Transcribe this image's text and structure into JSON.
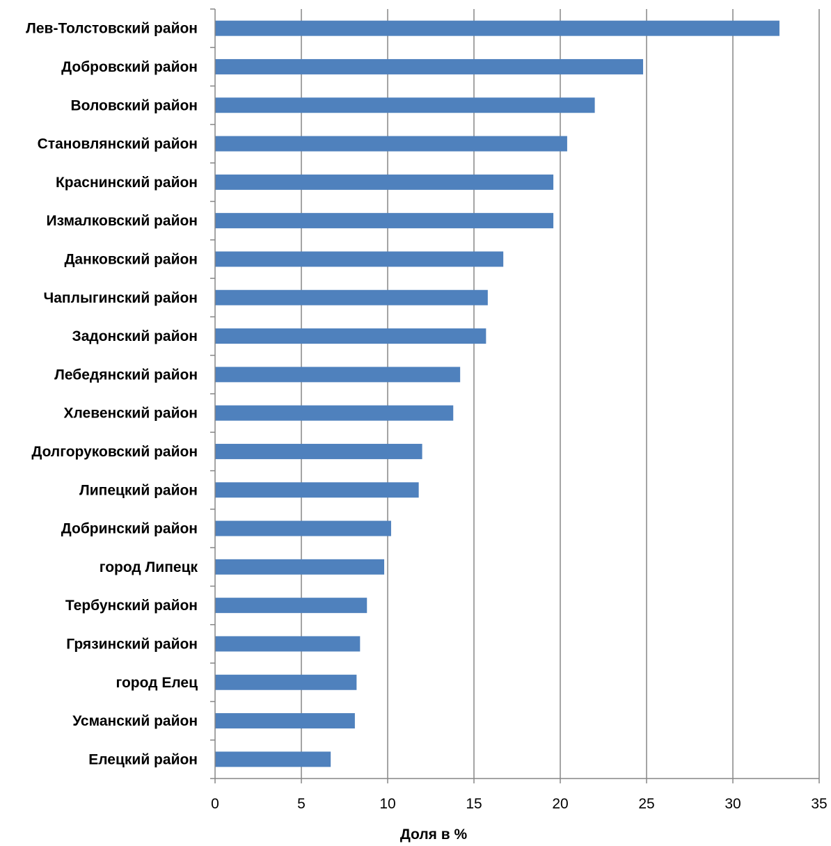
{
  "chart_data": {
    "type": "bar",
    "orientation": "horizontal",
    "categories": [
      "Лев-Толстовский район",
      "Добровский район",
      "Воловский район",
      "Становлянский район",
      "Краснинский район",
      "Измалковский район",
      "Данковский район",
      "Чаплыгинский район",
      "Задонский район",
      "Лебедянский район",
      "Хлевенский район",
      "Долгоруковский район",
      "Липецкий район",
      "Добринский район",
      "город Липецк",
      "Тербунский район",
      "Грязинский район",
      "город Елец",
      "Усманский район",
      "Елецкий район"
    ],
    "values": [
      32.7,
      24.8,
      22.0,
      20.4,
      19.6,
      19.6,
      16.7,
      15.8,
      15.7,
      14.2,
      13.8,
      12.0,
      11.8,
      10.2,
      9.8,
      8.8,
      8.4,
      8.2,
      8.1,
      6.7
    ],
    "xlabel": "Доля в %",
    "ylabel": "",
    "title": "",
    "xlim": [
      0,
      35
    ],
    "xticks": [
      "0",
      "5",
      "10",
      "15",
      "20",
      "25",
      "30",
      "35"
    ],
    "grid": true,
    "legend": "none",
    "bar_color": "#4f81bd",
    "grid_color": "#868686"
  }
}
